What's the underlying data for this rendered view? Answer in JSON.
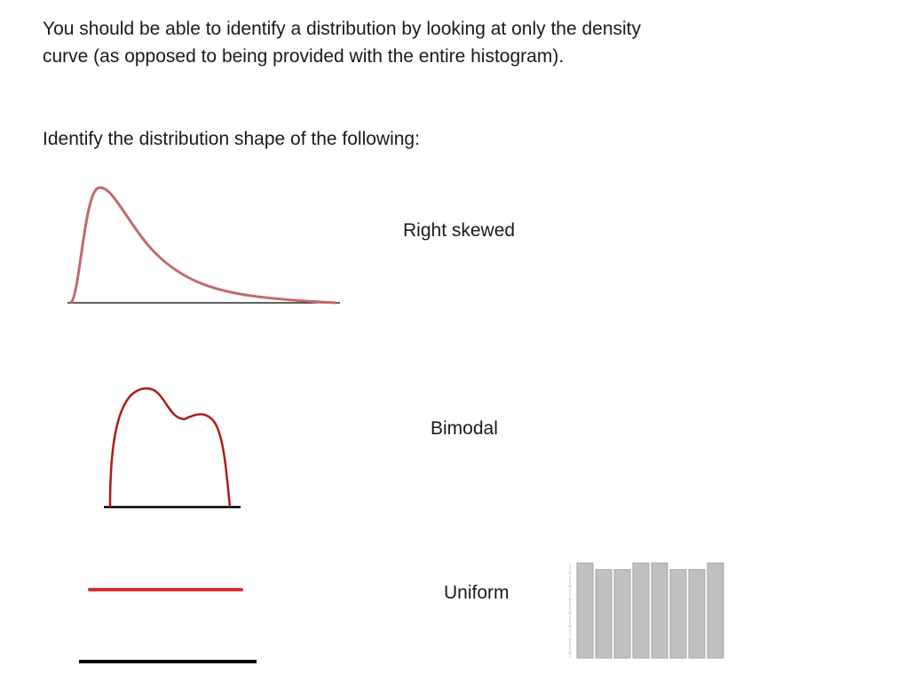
{
  "intro_text": "You should be able to identify a distribution by looking at only the density curve (as opposed to being provided with the entire histogram).",
  "prompt_text": "Identify the distribution shape of the following:",
  "shapes": [
    {
      "label": "Right skewed",
      "curve_color": "#c06a70",
      "curve_type": "right-skewed density curve"
    },
    {
      "label": "Bimodal",
      "curve_color": "#b01919",
      "curve_type": "bimodal density curve"
    },
    {
      "label": "Uniform",
      "curve_color": "#d9303a",
      "curve_type": "uniform density line"
    }
  ],
  "histogram": {
    "bar_color": "#c0c0c0",
    "bar_border_color": "#a6a6a6",
    "relative_heights": [
      1.0,
      0.93,
      0.93,
      1.0,
      1.0,
      0.93,
      0.93,
      1.0
    ]
  },
  "colors": {
    "baseline": "#000000",
    "text": "#1a1a1a"
  }
}
